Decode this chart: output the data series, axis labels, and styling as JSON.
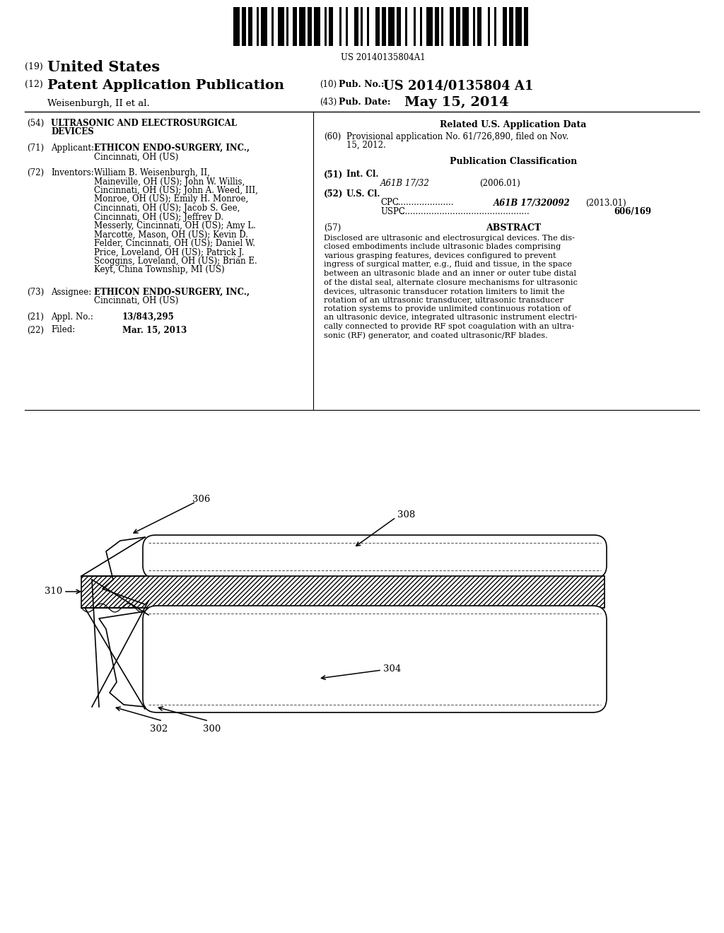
{
  "background_color": "#ffffff",
  "barcode_text": "US 20140135804A1",
  "header": {
    "country_num": "(19)",
    "country": "United States",
    "type_num": "(12)",
    "type": "Patent Application Publication",
    "pub_num_label_num": "(10)",
    "pub_num_label": "Pub. No.:",
    "pub_num": "US 2014/0135804 A1",
    "authors": "Weisenburgh, II et al.",
    "date_num_label_num": "(43)",
    "date_label": "Pub. Date:",
    "date": "May 15, 2014"
  },
  "left_col": {
    "title_num": "(54)",
    "title_line1": "ULTRASONIC AND ELECTROSURGICAL",
    "title_line2": "DEVICES",
    "applicant_num": "(71)",
    "applicant_label": "Applicant:",
    "applicant_bold": "ETHICON ENDO-SURGERY, INC.,",
    "applicant_normal": "Cincinnati, OH (US)",
    "inventors_num": "(72)",
    "inventors_label": "Inventors:",
    "inventors_lines": [
      "William B. Weisenburgh, II,",
      "Maineville, OH (US); John W. Willis,",
      "Cincinnati, OH (US); John A. Weed, III,",
      "Monroe, OH (US); Emily H. Monroe,",
      "Cincinnati, OH (US); Jacob S. Gee,",
      "Cincinnati, OH (US); Jeffrey D.",
      "Messerly, Cincinnati, OH (US); Amy L.",
      "Marcotte, Mason, OH (US); Kevin D.",
      "Felder, Cincinnati, OH (US); Daniel W.",
      "Price, Loveland, OH (US); Patrick J.",
      "Scoggins, Loveland, OH (US); Brian E.",
      "Keyt, China Township, MI (US)"
    ],
    "assignee_num": "(73)",
    "assignee_label": "Assignee:",
    "assignee_bold": "ETHICON ENDO-SURGERY, INC.,",
    "assignee_normal": "Cincinnati, OH (US)",
    "appl_num_label": "(21)",
    "appl_num_text": "Appl. No.:",
    "appl_num": "13/843,295",
    "filed_num": "(22)",
    "filed_label": "Filed:",
    "filed": "Mar. 15, 2013"
  },
  "right_col": {
    "related_header": "Related U.S. Application Data",
    "prov_num": "(60)",
    "prov_line1": "Provisional application No. 61/726,890, filed on Nov.",
    "prov_line2": "15, 2012.",
    "pub_class_header": "Publication Classification",
    "int_cl_num": "(51)",
    "int_cl_label": "Int. Cl.",
    "int_cl_code": "A61B 17/32",
    "int_cl_date": "(2006.01)",
    "us_cl_num": "(52)",
    "us_cl_label": "U.S. Cl.",
    "cpc_dots": "......................",
    "cpc_code": "A61B 17/320092",
    "cpc_date": "(2013.01)",
    "uspc_dots": ".................................................",
    "uspc_code": "606/169",
    "abstract_num": "(57)",
    "abstract_header": "ABSTRACT",
    "abstract_lines": [
      "Disclosed are ultrasonic and electrosurgical devices. The dis-",
      "closed embodiments include ultrasonic blades comprising",
      "various grasping features, devices configured to prevent",
      "ingress of surgical matter, e.g., fluid and tissue, in the space",
      "between an ultrasonic blade and an inner or outer tube distal",
      "of the distal seal, alternate closure mechanisms for ultrasonic",
      "devices, ultrasonic transducer rotation limiters to limit the",
      "rotation of an ultrasonic transducer, ultrasonic transducer",
      "rotation systems to provide unlimited continuous rotation of",
      "an ultrasonic device, integrated ultrasonic instrument electri-",
      "cally connected to provide RF spot coagulation with an ultra-",
      "sonic (RF) generator, and coated ultrasonic/RF blades."
    ]
  },
  "diagram": {
    "label_306": "306",
    "label_308": "308",
    "label_310": "310",
    "label_304": "304",
    "label_302": "302",
    "label_300": "300"
  }
}
